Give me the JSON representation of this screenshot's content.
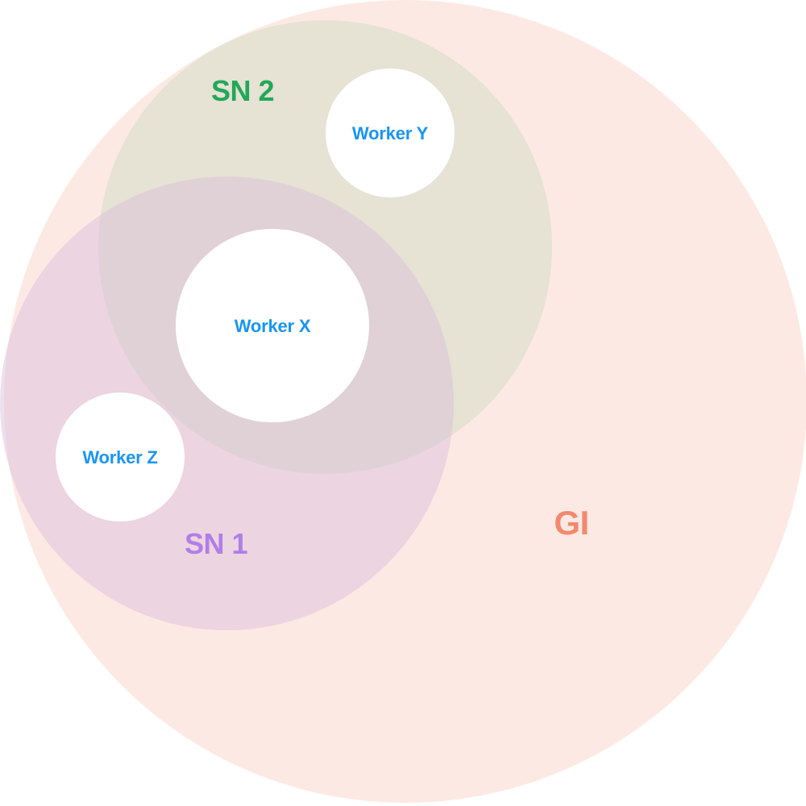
{
  "regions": {
    "gi": {
      "label": "GI",
      "fill": "#fde9e4",
      "label_color": "#f2896e"
    },
    "sn2": {
      "label": "SN 2",
      "fill": "#dfe0cf",
      "label_color": "#22a85a"
    },
    "sn1": {
      "label": "SN 1",
      "fill": "#d9bedc",
      "label_color": "#b07ee8"
    }
  },
  "workers": {
    "x": {
      "label": "Worker X"
    },
    "y": {
      "label": "Worker Y"
    },
    "z": {
      "label": "Worker Z"
    },
    "fill": "#ffffff",
    "label_color": "#1896f3"
  }
}
